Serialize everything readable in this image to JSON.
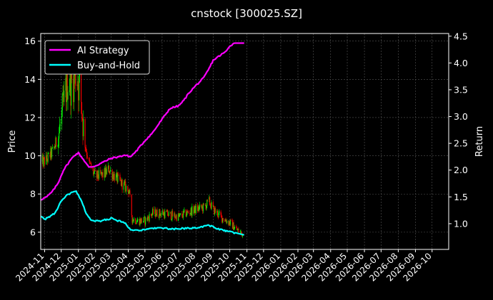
{
  "chart_data": {
    "type": "line",
    "title": "cnstock [300025.SZ]",
    "ylabel_left": "Price",
    "ylabel_right": "Return",
    "grid": true,
    "legend_position": "top-left",
    "x_tick_labels": [
      "2024-11",
      "2024-12",
      "2025-01",
      "2025-02",
      "2025-03",
      "2025-04",
      "2025-05",
      "2025-06",
      "2025-07",
      "2025-08",
      "2025-09",
      "2025-10",
      "2025-11",
      "2025-12",
      "2026-01",
      "2026-02",
      "2026-03",
      "2026-04",
      "2026-05",
      "2026-06",
      "2026-07",
      "2026-08",
      "2026-09",
      "2026-10"
    ],
    "xlim": [
      "2024-10-25",
      "2026-10-31"
    ],
    "left_axis": {
      "ylim": [
        5.1,
        16.4
      ],
      "ticks": [
        6,
        8,
        10,
        12,
        14,
        16
      ]
    },
    "right_axis": {
      "ylim": [
        0.52,
        4.55
      ],
      "ticks": [
        1.0,
        1.5,
        2.0,
        2.5,
        3.0,
        3.5,
        4.0,
        4.5
      ]
    },
    "candles": {
      "up_color": "#00ff00",
      "down_color": "#ff0000",
      "close_keypoints": [
        [
          "2024-10-25",
          9.6
        ],
        [
          "2024-11-05",
          9.8
        ],
        [
          "2024-11-15",
          10.2
        ],
        [
          "2024-11-25",
          10.9
        ],
        [
          "2024-12-05",
          12.5
        ],
        [
          "2024-12-12",
          14.0
        ],
        [
          "2024-12-20",
          13.8
        ],
        [
          "2024-12-28",
          14.5
        ],
        [
          "2025-01-05",
          13.2
        ],
        [
          "2025-01-12",
          10.8
        ],
        [
          "2025-01-20",
          9.6
        ],
        [
          "2025-02-01",
          8.9
        ],
        [
          "2025-02-15",
          9.0
        ],
        [
          "2025-02-25",
          9.3
        ],
        [
          "2025-03-05",
          9.0
        ],
        [
          "2025-03-15",
          8.7
        ],
        [
          "2025-03-25",
          8.4
        ],
        [
          "2025-04-02",
          8.2
        ],
        [
          "2025-04-08",
          6.7
        ],
        [
          "2025-04-18",
          6.6
        ],
        [
          "2025-05-01",
          6.6
        ],
        [
          "2025-05-15",
          7.0
        ],
        [
          "2025-06-01",
          7.0
        ],
        [
          "2025-06-15",
          6.9
        ],
        [
          "2025-07-01",
          6.8
        ],
        [
          "2025-07-15",
          7.0
        ],
        [
          "2025-08-01",
          7.2
        ],
        [
          "2025-08-15",
          7.3
        ],
        [
          "2025-08-25",
          7.6
        ],
        [
          "2025-09-01",
          7.2
        ],
        [
          "2025-09-15",
          6.8
        ],
        [
          "2025-10-01",
          6.5
        ],
        [
          "2025-10-15",
          6.1
        ],
        [
          "2025-10-25",
          5.9
        ]
      ]
    },
    "series": [
      {
        "name": "AI Strategy",
        "axis": "right",
        "color": "#ff00ff",
        "points": [
          [
            "2024-10-25",
            1.45
          ],
          [
            "2024-11-05",
            1.5
          ],
          [
            "2024-11-15",
            1.6
          ],
          [
            "2024-11-25",
            1.75
          ],
          [
            "2024-12-05",
            2.0
          ],
          [
            "2024-12-15",
            2.15
          ],
          [
            "2024-12-25",
            2.28
          ],
          [
            "2025-01-01",
            2.32
          ],
          [
            "2025-01-10",
            2.2
          ],
          [
            "2025-01-20",
            2.05
          ],
          [
            "2025-02-01",
            2.08
          ],
          [
            "2025-02-15",
            2.15
          ],
          [
            "2025-03-01",
            2.22
          ],
          [
            "2025-03-15",
            2.25
          ],
          [
            "2025-03-25",
            2.28
          ],
          [
            "2025-04-05",
            2.25
          ],
          [
            "2025-04-15",
            2.35
          ],
          [
            "2025-05-01",
            2.55
          ],
          [
            "2025-05-15",
            2.7
          ],
          [
            "2025-06-01",
            2.95
          ],
          [
            "2025-06-15",
            3.15
          ],
          [
            "2025-07-01",
            3.2
          ],
          [
            "2025-07-10",
            3.3
          ],
          [
            "2025-07-20",
            3.45
          ],
          [
            "2025-08-01",
            3.58
          ],
          [
            "2025-08-15",
            3.72
          ],
          [
            "2025-08-25",
            3.9
          ],
          [
            "2025-09-01",
            4.05
          ],
          [
            "2025-09-15",
            4.15
          ],
          [
            "2025-09-25",
            4.22
          ],
          [
            "2025-10-01",
            4.32
          ],
          [
            "2025-10-10",
            4.37
          ],
          [
            "2025-10-27",
            4.37
          ]
        ]
      },
      {
        "name": "Buy-and-Hold",
        "axis": "right",
        "color": "#00ffff",
        "points": [
          [
            "2024-10-25",
            1.15
          ],
          [
            "2024-11-01",
            1.08
          ],
          [
            "2024-11-10",
            1.13
          ],
          [
            "2024-11-20",
            1.2
          ],
          [
            "2024-11-30",
            1.4
          ],
          [
            "2024-12-10",
            1.52
          ],
          [
            "2024-12-20",
            1.58
          ],
          [
            "2024-12-28",
            1.6
          ],
          [
            "2025-01-05",
            1.45
          ],
          [
            "2025-01-15",
            1.2
          ],
          [
            "2025-01-25",
            1.05
          ],
          [
            "2025-02-10",
            1.05
          ],
          [
            "2025-03-01",
            1.1
          ],
          [
            "2025-03-15",
            1.05
          ],
          [
            "2025-03-25",
            1.02
          ],
          [
            "2025-04-05",
            0.9
          ],
          [
            "2025-04-15",
            0.88
          ],
          [
            "2025-05-01",
            0.88
          ],
          [
            "2025-05-15",
            0.92
          ],
          [
            "2025-06-01",
            0.92
          ],
          [
            "2025-06-15",
            0.9
          ],
          [
            "2025-07-01",
            0.9
          ],
          [
            "2025-07-15",
            0.92
          ],
          [
            "2025-08-01",
            0.92
          ],
          [
            "2025-08-15",
            0.95
          ],
          [
            "2025-08-25",
            0.97
          ],
          [
            "2025-09-05",
            0.92
          ],
          [
            "2025-09-20",
            0.87
          ],
          [
            "2025-10-01",
            0.85
          ],
          [
            "2025-10-15",
            0.82
          ],
          [
            "2025-10-27",
            0.79
          ]
        ]
      }
    ]
  }
}
